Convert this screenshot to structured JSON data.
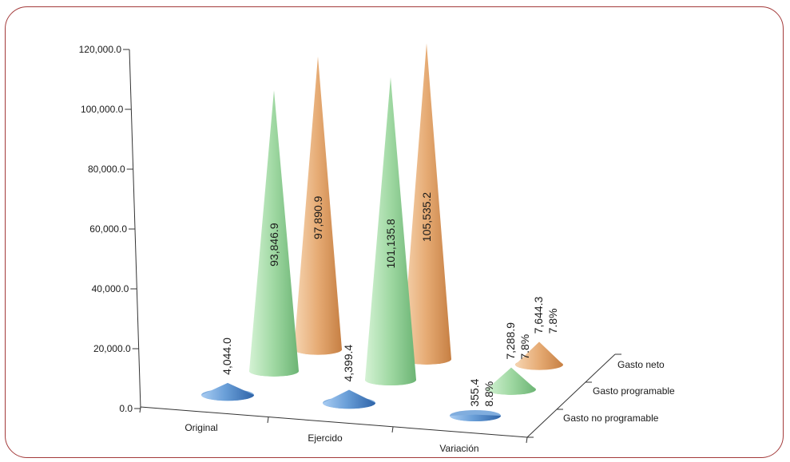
{
  "chart_data": {
    "type": "bar",
    "shape": "cone-3d",
    "categories": [
      "Original",
      "Ejercido",
      "Variación"
    ],
    "series": [
      {
        "name": "Gasto no programable",
        "values": [
          4044.0,
          4399.4,
          355.4
        ],
        "labels": [
          "4,044.0",
          "4,399.4",
          "355.4"
        ],
        "pct_labels": [
          "",
          "",
          "8.8%"
        ],
        "color": "#6a9fd8"
      },
      {
        "name": "Gasto programable",
        "values": [
          93846.9,
          101135.8,
          7288.9
        ],
        "labels": [
          "93,846.9",
          "101,135.8",
          "7,288.9"
        ],
        "pct_labels": [
          "",
          "",
          "7.8%"
        ],
        "color": "#9fd8a2"
      },
      {
        "name": "Gasto neto",
        "values": [
          97890.9,
          105535.2,
          7644.3
        ],
        "labels": [
          "97,890.9",
          "105,535.2",
          "7,644.3"
        ],
        "pct_labels": [
          "",
          "",
          "7.8%"
        ],
        "color": "#e6ab74"
      }
    ],
    "ylim": [
      0,
      120000
    ],
    "yticks": [
      "0.0",
      "20,000.0",
      "40,000.0",
      "60,000.0",
      "80,000.0",
      "100,000.0",
      "120,000.0"
    ],
    "title": "",
    "xlabel": "",
    "ylabel": "",
    "legend": "depth-axis-right"
  }
}
